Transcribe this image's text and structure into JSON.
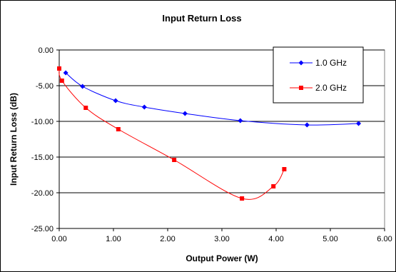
{
  "chart_data": {
    "type": "line",
    "title": "Input Return Loss",
    "xlabel": "Output Power (W)",
    "ylabel": "Input Return Loss (dB)",
    "xlim": [
      0,
      6
    ],
    "ylim": [
      -25,
      0
    ],
    "x_ticks": [
      "0.00",
      "1.00",
      "2.00",
      "3.00",
      "4.00",
      "5.00",
      "6.00"
    ],
    "y_ticks": [
      "0.00",
      "-5.00",
      "-10.00",
      "-15.00",
      "-20.00",
      "-25.00"
    ],
    "grid": "horizontal",
    "legend_position": "top-right",
    "series": [
      {
        "name": "1.0 GHz",
        "color": "#0000ff",
        "marker": "diamond",
        "x": [
          0.12,
          0.43,
          1.04,
          1.57,
          2.32,
          3.34,
          4.57,
          5.52
        ],
        "y": [
          -3.2,
          -5.1,
          -7.1,
          -8.0,
          -8.9,
          -9.9,
          -10.5,
          -10.3
        ]
      },
      {
        "name": "2.0 GHz",
        "color": "#ff0000",
        "marker": "square",
        "x": [
          0.0,
          0.05,
          0.49,
          1.09,
          2.12,
          3.37,
          3.95,
          4.15
        ],
        "y": [
          -2.6,
          -4.3,
          -8.1,
          -11.1,
          -15.4,
          -20.8,
          -19.1,
          -16.7
        ]
      }
    ]
  }
}
